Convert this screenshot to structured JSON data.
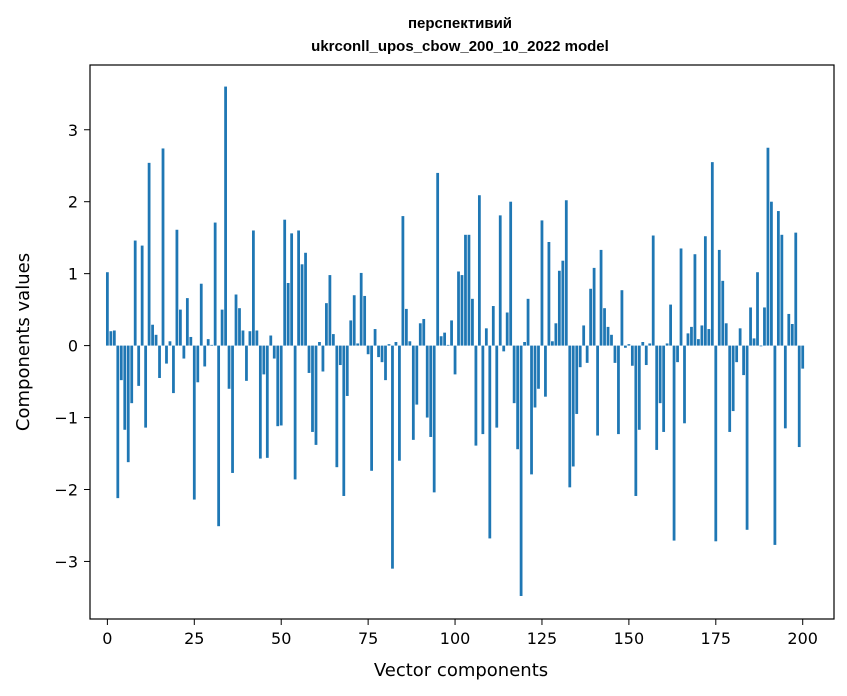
{
  "chart_data": {
    "type": "bar",
    "title_line1": "перспективий",
    "title_line2": "ukrconll_upos_cbow_200_10_2022 model",
    "xlabel": "Vector components",
    "ylabel": "Components values",
    "xlim": [
      -5,
      209
    ],
    "ylim": [
      -3.8,
      3.9
    ],
    "x_ticks": [
      0,
      25,
      50,
      75,
      100,
      125,
      150,
      175,
      200
    ],
    "x_tick_labels": [
      "0",
      "25",
      "50",
      "75",
      "100",
      "125",
      "150",
      "175",
      "200"
    ],
    "y_ticks": [
      -3,
      -2,
      -1,
      0,
      1,
      2,
      3
    ],
    "y_tick_labels": [
      "−3",
      "−2",
      "−1",
      "0",
      "1",
      "2",
      "3"
    ],
    "bar_color": "#1f77b4",
    "values": [
      1.02,
      0.2,
      0.21,
      -2.12,
      -0.48,
      -1.17,
      -1.62,
      -0.8,
      1.46,
      -0.56,
      1.39,
      -1.14,
      2.54,
      0.29,
      0.15,
      -0.45,
      2.74,
      -0.25,
      0.06,
      -0.66,
      1.61,
      0.5,
      -0.18,
      0.66,
      0.12,
      -2.14,
      -0.51,
      0.86,
      -0.29,
      0.09,
      0.01,
      1.71,
      -2.51,
      0.5,
      3.6,
      -0.6,
      -1.77,
      0.71,
      0.52,
      0.21,
      -0.49,
      0.2,
      1.6,
      0.21,
      -1.57,
      -0.4,
      -1.56,
      0.14,
      -0.18,
      -1.12,
      -1.11,
      1.75,
      0.87,
      1.56,
      -1.86,
      1.6,
      1.13,
      1.29,
      -0.38,
      -1.2,
      -1.38,
      0.05,
      -0.36,
      0.59,
      0.98,
      0.16,
      -1.69,
      -0.27,
      -2.09,
      -0.7,
      0.35,
      0.7,
      0.03,
      1.01,
      0.69,
      -0.12,
      -1.74,
      0.23,
      -0.16,
      -0.23,
      -0.48,
      0.02,
      -3.1,
      0.05,
      -1.6,
      1.8,
      0.51,
      0.06,
      -1.31,
      -0.82,
      0.31,
      0.37,
      -1.0,
      -1.27,
      -2.04,
      2.4,
      0.13,
      0.18,
      0.01,
      0.35,
      -0.4,
      1.03,
      0.98,
      1.54,
      1.54,
      0.65,
      -1.39,
      2.09,
      -1.23,
      0.24,
      -2.68,
      0.55,
      -1.14,
      1.81,
      -0.08,
      0.46,
      2.0,
      -0.8,
      -1.44,
      -3.48,
      0.05,
      0.65,
      -1.79,
      -0.86,
      -0.6,
      1.74,
      -0.71,
      1.44,
      0.06,
      0.31,
      1.04,
      1.18,
      2.02,
      -1.97,
      -1.68,
      -0.95,
      -0.3,
      0.28,
      -0.24,
      0.79,
      1.08,
      -1.25,
      1.33,
      0.52,
      0.26,
      0.15,
      -0.24,
      -1.23,
      0.77,
      -0.03,
      0.02,
      -0.28,
      -2.09,
      -1.17,
      0.05,
      -0.27,
      0.03,
      1.53,
      -1.45,
      -0.8,
      -1.2,
      0.03,
      0.57,
      -2.71,
      -0.23,
      1.35,
      -1.08,
      0.17,
      0.26,
      1.27,
      0.09,
      0.28,
      1.52,
      0.23,
      2.55,
      -2.72,
      1.33,
      0.9,
      0.31,
      -1.2,
      -0.91,
      -0.23,
      0.24,
      -0.41,
      -2.56,
      0.53,
      0.1,
      1.02,
      -0.01,
      0.53,
      2.75,
      2.0,
      -2.77,
      1.87,
      1.54,
      -1.15,
      0.44,
      0.3,
      1.57,
      -1.41,
      -0.32
    ]
  }
}
